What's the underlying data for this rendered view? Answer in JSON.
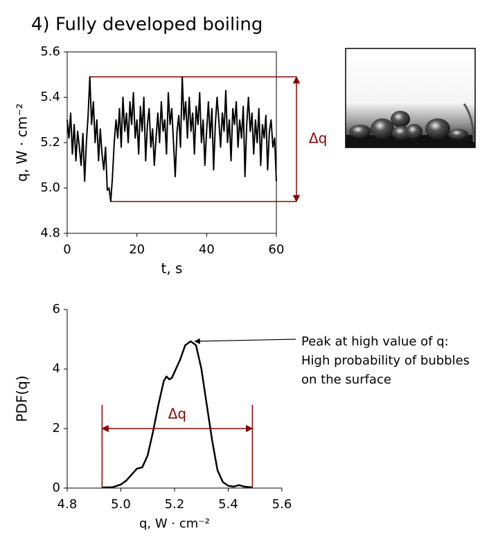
{
  "title": "4) Fully developed boiling",
  "chart_data": [
    {
      "type": "line",
      "color": "#000000",
      "xlabel": "t, s",
      "ylabel": "q, W · cm⁻²",
      "xlim": [
        0,
        60
      ],
      "xticks": [
        0,
        20,
        40,
        60
      ],
      "ylim": [
        4.8,
        5.6
      ],
      "yticks": [
        4.8,
        {
          "value": 5,
          "label": "5.0"
        },
        5.2,
        5.4,
        5.6
      ],
      "x": [
        0,
        0.5,
        1,
        1.5,
        2,
        2.5,
        3,
        3.5,
        4,
        4.5,
        5,
        5.5,
        6,
        6.5,
        7,
        7.5,
        8,
        8.5,
        9,
        9.5,
        10,
        10.5,
        11,
        11.5,
        12,
        12.5,
        13,
        13.5,
        14,
        14.5,
        15,
        15.5,
        16,
        16.5,
        17,
        17.5,
        18,
        18.5,
        19,
        19.5,
        20,
        20.5,
        21,
        21.5,
        22,
        22.5,
        23,
        23.5,
        24,
        24.5,
        25,
        25.5,
        26,
        26.5,
        27,
        27.5,
        28,
        28.5,
        29,
        29.5,
        30,
        30.5,
        31,
        31.5,
        32,
        32.5,
        33,
        33.5,
        34,
        34.5,
        35,
        35.5,
        36,
        36.5,
        37,
        37.5,
        38,
        38.5,
        39,
        39.5,
        40,
        40.5,
        41,
        41.5,
        42,
        42.5,
        43,
        43.5,
        44,
        44.5,
        45,
        45.5,
        46,
        46.5,
        47,
        47.5,
        48,
        48.5,
        49,
        49.5,
        50,
        50.5,
        51,
        51.5,
        52,
        52.5,
        53,
        53.5,
        54,
        54.5,
        55,
        55.5,
        56,
        56.5,
        57,
        57.5,
        58,
        58.5,
        59,
        59.5,
        60
      ],
      "values": [
        5.3,
        5.22,
        5.33,
        5.15,
        5.28,
        5.12,
        5.25,
        5.18,
        5.1,
        5.24,
        5.03,
        5.2,
        5.32,
        5.49,
        5.28,
        5.38,
        5.2,
        5.3,
        5.12,
        5.26,
        5.15,
        5.08,
        5.18,
        4.99,
        5.0,
        4.94,
        5.05,
        5.2,
        5.3,
        5.22,
        5.35,
        5.18,
        5.4,
        5.25,
        5.33,
        5.2,
        5.38,
        5.28,
        5.42,
        5.22,
        5.3,
        5.15,
        5.36,
        5.25,
        5.4,
        5.12,
        5.28,
        5.35,
        5.18,
        5.26,
        5.1,
        5.22,
        5.33,
        5.2,
        5.38,
        5.25,
        5.3,
        5.15,
        5.42,
        5.28,
        5.35,
        5.2,
        5.05,
        5.25,
        5.32,
        5.18,
        5.49,
        5.3,
        5.38,
        5.22,
        5.4,
        5.25,
        5.33,
        5.15,
        5.36,
        5.28,
        5.42,
        5.2,
        5.3,
        5.1,
        5.25,
        5.38,
        5.22,
        5.35,
        5.08,
        5.28,
        5.4,
        5.3,
        5.18,
        5.33,
        5.25,
        5.43,
        5.2,
        5.3,
        5.12,
        5.35,
        5.28,
        5.38,
        5.18,
        5.3,
        5.22,
        5.36,
        5.05,
        5.28,
        5.4,
        5.25,
        5.33,
        5.15,
        5.3,
        5.2,
        5.35,
        5.1,
        5.28,
        5.22,
        5.32,
        5.08,
        5.25,
        5.3,
        5.18,
        5.22,
        5.03
      ],
      "delta": {
        "label": "Δq",
        "color": "#8b0000",
        "high": 5.49,
        "low": 4.94
      }
    },
    {
      "type": "line",
      "color": "#000000",
      "xlabel": "q, W · cm⁻²",
      "ylabel": "PDF(q)",
      "xlim": [
        4.8,
        5.6
      ],
      "xticks": [
        4.8,
        {
          "value": 5,
          "label": "5.0"
        },
        5.2,
        5.4,
        5.6
      ],
      "ylim": [
        0,
        6
      ],
      "yticks": [
        0,
        2,
        4,
        6
      ],
      "x": [
        4.93,
        4.97,
        5.0,
        5.02,
        5.04,
        5.06,
        5.08,
        5.1,
        5.12,
        5.14,
        5.16,
        5.17,
        5.18,
        5.19,
        5.2,
        5.22,
        5.24,
        5.26,
        5.28,
        5.3,
        5.32,
        5.34,
        5.36,
        5.38,
        5.4,
        5.42,
        5.44,
        5.46,
        5.49
      ],
      "values": [
        0.02,
        0.03,
        0.12,
        0.25,
        0.45,
        0.65,
        0.7,
        1.1,
        1.9,
        2.8,
        3.6,
        3.75,
        3.65,
        3.7,
        3.9,
        4.3,
        4.8,
        4.93,
        4.8,
        4.0,
        2.8,
        1.6,
        0.6,
        0.2,
        0.08,
        0.05,
        0.1,
        0.05,
        0.02
      ],
      "delta": {
        "label": "Δq",
        "color": "#8b0000",
        "low": 4.93,
        "high": 5.49,
        "level": 2
      },
      "annotation": [
        "Peak at high value of q:",
        "High probability of bubbles",
        "on the surface"
      ]
    }
  ]
}
